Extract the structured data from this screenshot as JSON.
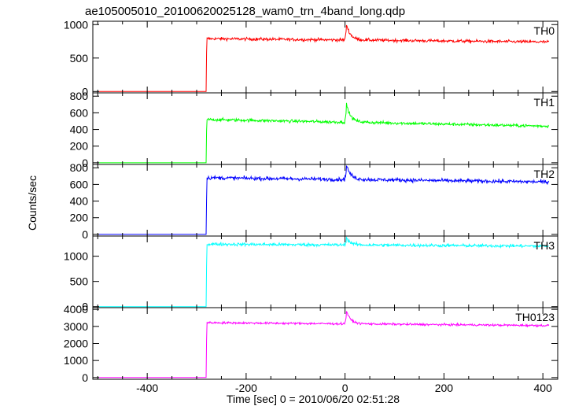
{
  "chart_data": {
    "type": "line",
    "title": "ae105005010_20100620025128_wam0_trn_4band_long.qdp",
    "xlabel": "Time [sec] 0 = 2010/06/20 02:51:28",
    "ylabel": "Counts/sec",
    "xlim": [
      -510,
      430
    ],
    "xticks": [
      -400,
      -200,
      0,
      200,
      400
    ],
    "step_time": -280,
    "panels": [
      {
        "name": "TH0",
        "color": "#ff0000",
        "ylim": [
          -20,
          1050
        ],
        "yticks": [
          0,
          500,
          1000
        ],
        "pre_level": 0,
        "step_value": 580,
        "rise_value": 790,
        "end_value": 740,
        "noise": 22,
        "spike_time": 3,
        "spike_value": 1000
      },
      {
        "name": "TH1",
        "color": "#00ff00",
        "ylim": [
          -20,
          840
        ],
        "yticks": [
          0,
          200,
          400,
          600,
          800
        ],
        "pre_level": 0,
        "step_value": 380,
        "rise_value": 520,
        "end_value": 440,
        "noise": 18,
        "spike_time": 3,
        "spike_value": 700
      },
      {
        "name": "TH2",
        "color": "#0000ff",
        "ylim": [
          -20,
          840
        ],
        "yticks": [
          0,
          200,
          400,
          600,
          800
        ],
        "pre_level": 0,
        "step_value": 420,
        "rise_value": 680,
        "end_value": 630,
        "noise": 22,
        "spike_time": 3,
        "spike_value": 830
      },
      {
        "name": "TH3",
        "color": "#00ffff",
        "ylim": [
          -20,
          1400
        ],
        "yticks": [
          0,
          500,
          1000
        ],
        "pre_level": 0,
        "step_value": 800,
        "rise_value": 1240,
        "end_value": 1200,
        "noise": 30,
        "spike_time": 3,
        "spike_value": 1360
      },
      {
        "name": "TH0123",
        "color": "#ff00ff",
        "ylim": [
          -100,
          4100
        ],
        "yticks": [
          0,
          1000,
          2000,
          3000,
          4000
        ],
        "pre_level": 0,
        "step_value": 2200,
        "rise_value": 3220,
        "end_value": 3050,
        "noise": 60,
        "spike_time": 3,
        "spike_value": 3900
      }
    ]
  }
}
